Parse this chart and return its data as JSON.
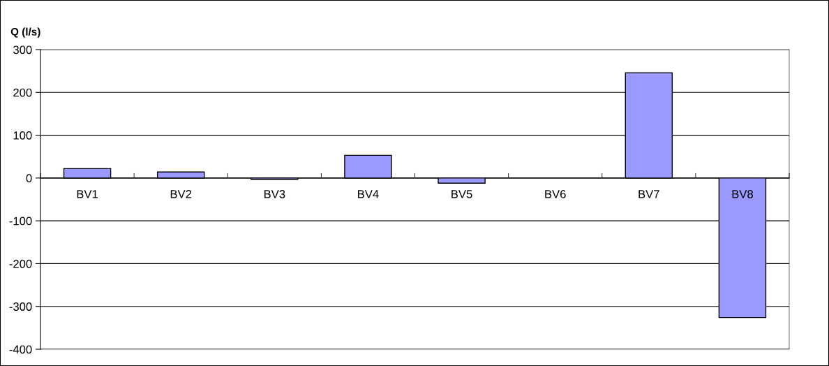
{
  "chart_data": {
    "type": "bar",
    "ylabel": "Q (l/s)",
    "categories": [
      "BV1",
      "BV2",
      "BV3",
      "BV4",
      "BV5",
      "BV6",
      "BV7",
      "BV8"
    ],
    "values": [
      22,
      14,
      -3,
      53,
      -12,
      null,
      246,
      -326
    ],
    "color": "#9999ff",
    "ylim": [
      -400,
      300
    ],
    "yticks": [
      -400,
      -300,
      -200,
      -100,
      0,
      100,
      200,
      300
    ],
    "grid": "y",
    "legend": false
  }
}
